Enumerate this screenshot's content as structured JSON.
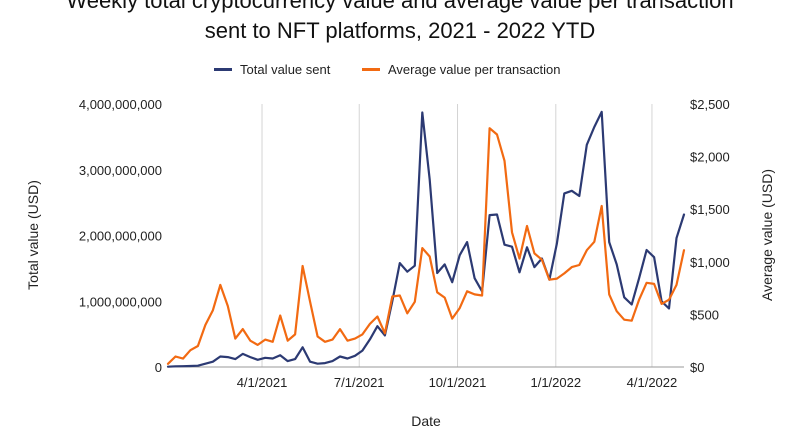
{
  "chart_data": {
    "type": "line",
    "title_line1": "Weekly total cryptocurrency value and average value per transaction",
    "title_line2": "sent to NFT platforms, 2021 - 2022 YTD",
    "xlabel": "Date",
    "ylabel_left": "Total value (USD)",
    "ylabel_right": "Average value (USD)",
    "ylim_left": [
      0,
      4000000000
    ],
    "ylim_right": [
      0,
      2500
    ],
    "y_left_ticks": [
      "0",
      "1,000,000,000",
      "2,000,000,000",
      "3,000,000,000",
      "4,000,000,000"
    ],
    "y_right_ticks": [
      "$0",
      "$500",
      "$1,000",
      "$1,500",
      "$2,000",
      "$2,500"
    ],
    "x_ticks": [
      "4/1/2021",
      "7/1/2021",
      "10/1/2021",
      "1/1/2022",
      "4/1/2022"
    ],
    "legend_position": "top",
    "grid": "vertical",
    "x": [
      "2021-01-03",
      "2021-01-10",
      "2021-01-17",
      "2021-01-24",
      "2021-01-31",
      "2021-02-07",
      "2021-02-14",
      "2021-02-21",
      "2021-02-28",
      "2021-03-07",
      "2021-03-14",
      "2021-03-21",
      "2021-03-28",
      "2021-04-04",
      "2021-04-11",
      "2021-04-18",
      "2021-04-25",
      "2021-05-02",
      "2021-05-09",
      "2021-05-16",
      "2021-05-23",
      "2021-05-30",
      "2021-06-06",
      "2021-06-13",
      "2021-06-20",
      "2021-06-27",
      "2021-07-04",
      "2021-07-11",
      "2021-07-18",
      "2021-07-25",
      "2021-08-01",
      "2021-08-08",
      "2021-08-15",
      "2021-08-22",
      "2021-08-29",
      "2021-09-05",
      "2021-09-12",
      "2021-09-19",
      "2021-09-26",
      "2021-10-03",
      "2021-10-10",
      "2021-10-17",
      "2021-10-24",
      "2021-10-31",
      "2021-11-07",
      "2021-11-14",
      "2021-11-21",
      "2021-11-28",
      "2021-12-05",
      "2021-12-12",
      "2021-12-19",
      "2021-12-26",
      "2022-01-02",
      "2022-01-09",
      "2022-01-16",
      "2022-01-23",
      "2022-01-30",
      "2022-02-06",
      "2022-02-13",
      "2022-02-20",
      "2022-02-27",
      "2022-03-06",
      "2022-03-13",
      "2022-03-20",
      "2022-03-27",
      "2022-04-03",
      "2022-04-10",
      "2022-04-17",
      "2022-04-24",
      "2022-05-01"
    ],
    "series": [
      {
        "name": "Total value sent",
        "color": "#2c3a73",
        "axis": "left",
        "values": [
          5000000,
          10000000,
          12000000,
          15000000,
          20000000,
          50000000,
          80000000,
          160000000,
          150000000,
          120000000,
          200000000,
          150000000,
          110000000,
          140000000,
          130000000,
          180000000,
          90000000,
          120000000,
          300000000,
          80000000,
          50000000,
          60000000,
          90000000,
          160000000,
          130000000,
          170000000,
          250000000,
          420000000,
          620000000,
          480000000,
          1000000000,
          1580000000,
          1450000000,
          1540000000,
          3870000000,
          2850000000,
          1430000000,
          1560000000,
          1290000000,
          1700000000,
          1900000000,
          1350000000,
          1150000000,
          2310000000,
          2320000000,
          1860000000,
          1830000000,
          1440000000,
          1820000000,
          1520000000,
          1650000000,
          1330000000,
          1880000000,
          2640000000,
          2680000000,
          2600000000,
          3380000000,
          3650000000,
          3880000000,
          1900000000,
          1560000000,
          1060000000,
          950000000,
          1350000000,
          1780000000,
          1670000000,
          1000000000,
          890000000,
          1960000000,
          2320000000
        ]
      },
      {
        "name": "Average value per transaction",
        "color": "#f26a12",
        "axis": "right",
        "values": [
          30,
          100,
          80,
          160,
          200,
          400,
          540,
          780,
          580,
          270,
          360,
          250,
          210,
          260,
          240,
          490,
          250,
          310,
          960,
          620,
          290,
          240,
          260,
          360,
          250,
          270,
          310,
          410,
          480,
          320,
          670,
          680,
          510,
          620,
          1130,
          1050,
          710,
          660,
          460,
          560,
          720,
          690,
          680,
          2270,
          2210,
          1960,
          1280,
          1030,
          1340,
          1080,
          1020,
          830,
          840,
          890,
          950,
          970,
          1110,
          1190,
          1530,
          690,
          530,
          450,
          440,
          640,
          800,
          790,
          600,
          640,
          780,
          1110
        ]
      }
    ]
  }
}
